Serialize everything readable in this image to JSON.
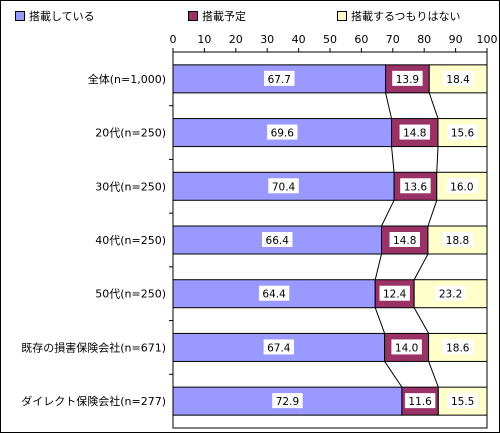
{
  "legend": {
    "items": [
      {
        "label": "搭載している",
        "color": "#9999ff"
      },
      {
        "label": "搭載予定",
        "color": "#993366"
      },
      {
        "label": "搭載するつもりはない",
        "color": "#ffffcc"
      }
    ]
  },
  "chart_data": {
    "type": "bar",
    "orientation": "horizontal",
    "stacked": true,
    "xlim": [
      0,
      100
    ],
    "x_ticks": [
      "0",
      "10",
      "20",
      "30",
      "40",
      "50",
      "60",
      "70",
      "80",
      "90",
      "100"
    ],
    "categories": [
      "全体(n=1,000)",
      "20代(n=250)",
      "30代(n=250)",
      "40代(n=250)",
      "50代(n=250)",
      "既存の損害保険会社(n=671)",
      "ダイレクト保険会社(n=277)"
    ],
    "series": [
      {
        "name": "搭載している",
        "color": "#9999ff",
        "values": [
          67.7,
          69.6,
          70.4,
          66.4,
          64.4,
          67.4,
          72.9
        ],
        "labels": [
          "67.7",
          "69.6",
          "70.4",
          "66.4",
          "64.4",
          "67.4",
          "72.9"
        ]
      },
      {
        "name": "搭載予定",
        "color": "#993366",
        "values": [
          13.9,
          14.8,
          13.6,
          14.8,
          12.4,
          14.0,
          11.6
        ],
        "labels": [
          "13.9",
          "14.8",
          "13.6",
          "14.8",
          "12.4",
          "14.0",
          "11.6"
        ]
      },
      {
        "name": "搭載するつもりはない",
        "color": "#ffffcc",
        "values": [
          18.4,
          15.6,
          16.0,
          18.8,
          23.2,
          18.6,
          15.5
        ],
        "labels": [
          "18.4",
          "15.6",
          "16.0",
          "18.8",
          "23.2",
          "18.6",
          "15.5"
        ]
      }
    ],
    "series_lines": true,
    "grid": false,
    "legend_position": "top"
  }
}
